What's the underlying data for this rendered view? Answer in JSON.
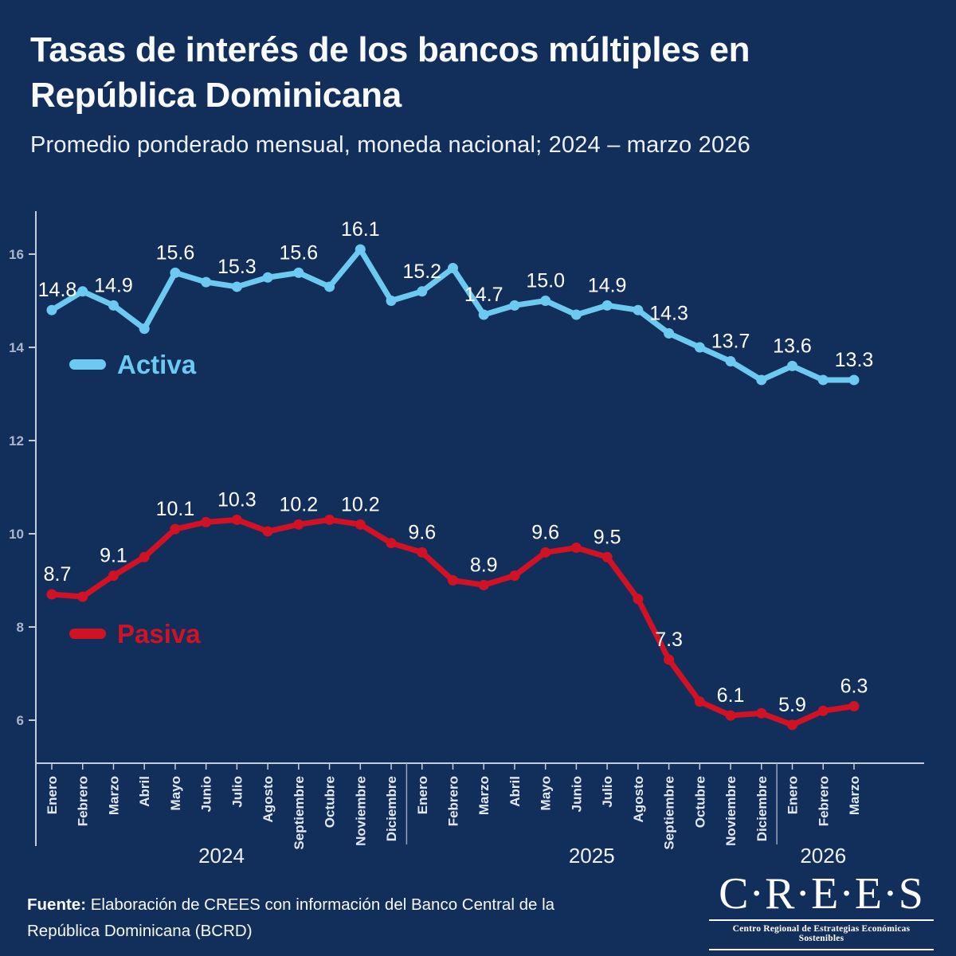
{
  "header": {
    "title": "Tasas de interés de los bancos múltiples en República Dominicana",
    "subtitle": "Promedio ponderado mensual, moneda nacional; 2024 – marzo 2026"
  },
  "chart_data": {
    "type": "line",
    "title": "Tasas de interés de los bancos múltiples en República Dominicana",
    "xlabel": "",
    "ylabel": "",
    "ylim": [
      5,
      17
    ],
    "yticks": [
      16,
      14,
      12,
      10,
      8,
      6
    ],
    "grid": false,
    "legend_position": "inside-left",
    "x": [
      "Enero",
      "Febrero",
      "Marzo",
      "Abril",
      "Mayo",
      "Junio",
      "Julio",
      "Agosto",
      "Septiembre",
      "Octubre",
      "Noviembre",
      "Diciembre",
      "Enero",
      "Febrero",
      "Marzo",
      "Abril",
      "Mayo",
      "Junio",
      "Julio",
      "Agosto",
      "Septiembre",
      "Octubre",
      "Noviembre",
      "Diciembre",
      "Enero",
      "Febrero",
      "Marzo"
    ],
    "year_groups": [
      {
        "label": "2024",
        "months": 12
      },
      {
        "label": "2025",
        "months": 12
      },
      {
        "label": "2026",
        "months": 3
      }
    ],
    "series": [
      {
        "name": "Activa",
        "color": "#6cc9f0",
        "values": [
          14.8,
          15.2,
          14.9,
          14.4,
          15.6,
          15.4,
          15.3,
          15.5,
          15.6,
          15.3,
          16.1,
          15.0,
          15.2,
          15.7,
          14.7,
          14.9,
          15.0,
          14.7,
          14.9,
          14.8,
          14.3,
          14.0,
          13.7,
          13.3,
          13.6,
          13.3,
          13.3
        ],
        "point_labels": [
          "14.8",
          null,
          "14.9",
          null,
          "15.6",
          null,
          "15.3",
          null,
          "15.6",
          null,
          "16.1",
          null,
          "15.2",
          null,
          "14.7",
          null,
          "15.0",
          null,
          "14.9",
          null,
          "14.3",
          null,
          "13.7",
          null,
          "13.6",
          null,
          "13.3"
        ]
      },
      {
        "name": "Pasiva",
        "color": "#d11124",
        "values": [
          8.7,
          8.65,
          9.1,
          9.5,
          10.1,
          10.25,
          10.3,
          10.05,
          10.2,
          10.3,
          10.2,
          9.8,
          9.6,
          9.0,
          8.9,
          9.1,
          9.6,
          9.7,
          9.5,
          8.6,
          7.3,
          6.4,
          6.1,
          6.15,
          5.9,
          6.2,
          6.3
        ],
        "point_labels": [
          "8.7",
          null,
          "9.1",
          null,
          "10.1",
          null,
          "10.3",
          null,
          "10.2",
          null,
          "10.2",
          null,
          "9.6",
          null,
          "8.9",
          null,
          "9.6",
          null,
          "9.5",
          null,
          "7.3",
          null,
          "6.1",
          null,
          "5.9",
          null,
          "6.3"
        ]
      }
    ]
  },
  "footer": {
    "source_bold": "Fuente:",
    "source_rest": " Elaboración de CREES con información del Banco Central de la República Dominicana (BCRD)"
  },
  "logo": {
    "name": "C·R·E·E·S",
    "caption": "Centro Regional de Estrategias Económicas Sostenibles"
  }
}
